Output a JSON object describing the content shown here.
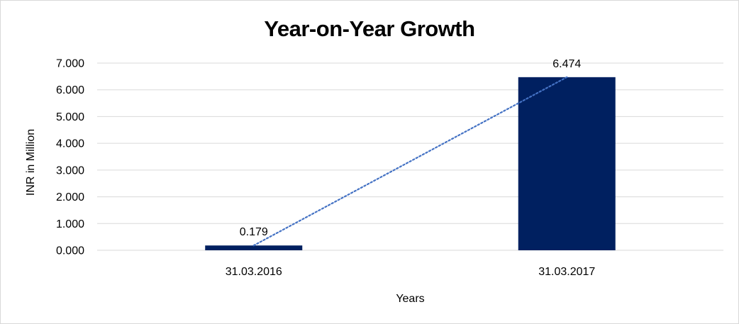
{
  "chart_data": {
    "type": "bar",
    "title": "Year-on-Year Growth",
    "xlabel": "Years",
    "ylabel": "INR in Million",
    "categories": [
      "31.03.2016",
      "31.03.2017"
    ],
    "values": [
      0.179,
      6.474
    ],
    "data_labels": [
      "0.179",
      "6.474"
    ],
    "ylim": [
      0,
      7
    ],
    "yticks": [
      0,
      1,
      2,
      3,
      4,
      5,
      6,
      7
    ],
    "ytick_labels": [
      "0.000",
      "1.000",
      "2.000",
      "3.000",
      "4.000",
      "5.000",
      "6.000",
      "7.000"
    ],
    "grid": true,
    "legend": "none",
    "trendline": {
      "type": "linear",
      "style": "dotted",
      "color": "#4472c4"
    },
    "bar_color": "#002060"
  }
}
